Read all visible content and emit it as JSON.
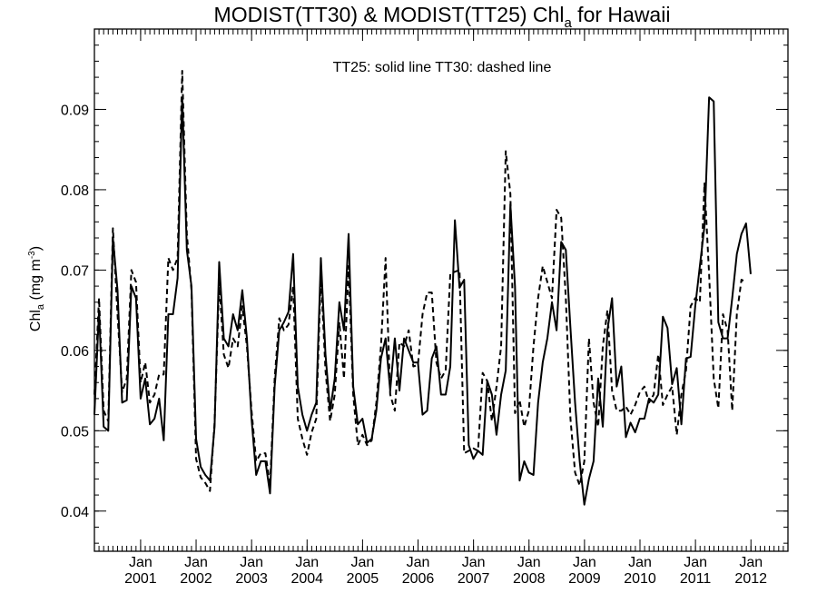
{
  "chart_data": {
    "type": "line",
    "title_main": "MODIST(TT30) & MODIST(TT25)  Chl",
    "title_sub": "a",
    "title_tail": " for Hawaii",
    "ylabel_main": "Chl",
    "ylabel_sub": "a",
    "ylabel_unit": " (mg m",
    "ylabel_sup": "-3",
    "ylabel_close": ")",
    "annotation": "TT25: solid line   TT30: dashed line",
    "xlim": [
      2000.167,
      2012.667
    ],
    "ylim": [
      0.035,
      0.1
    ],
    "y_ticks": [
      0.04,
      0.05,
      0.06,
      0.07,
      0.08,
      0.09
    ],
    "y_tick_labels": [
      "0.04",
      "0.05",
      "0.06",
      "0.07",
      "0.08",
      "0.09"
    ],
    "x_ticks": [
      2001,
      2002,
      2003,
      2004,
      2005,
      2006,
      2007,
      2008,
      2009,
      2010,
      2011,
      2012
    ],
    "x_tick_month": "Jan",
    "x_tick_years": [
      "2001",
      "2002",
      "2003",
      "2004",
      "2005",
      "2006",
      "2007",
      "2008",
      "2009",
      "2010",
      "2011",
      "2012"
    ],
    "grid": false,
    "series": [
      {
        "style": "solid",
        "x_start": 2000.167,
        "x_step": 0.0833,
        "values": [
          0.052,
          0.065,
          0.0505,
          0.05,
          0.074,
          0.0675,
          0.0535,
          0.0538,
          0.068,
          0.0665,
          0.054,
          0.0565,
          0.0508,
          0.0515,
          0.054,
          0.0488,
          0.0645,
          0.0645,
          0.069,
          0.0915,
          0.0725,
          0.068,
          0.049,
          0.0455,
          0.0445,
          0.0438,
          0.0505,
          0.071,
          0.0615,
          0.0605,
          0.0645,
          0.0625,
          0.0675,
          0.0615,
          0.0515,
          0.0445,
          0.0462,
          0.0462,
          0.0422,
          0.0555,
          0.0625,
          0.0635,
          0.0648,
          0.072,
          0.0555,
          0.052,
          0.05,
          0.052,
          0.0535,
          0.0715,
          0.0595,
          0.0525,
          0.0565,
          0.066,
          0.0625,
          0.0745,
          0.0555,
          0.0508,
          0.0515,
          0.0485,
          0.049,
          0.0525,
          0.059,
          0.0615,
          0.055,
          0.0615,
          0.055,
          0.0615,
          0.06,
          0.0585,
          0.0585,
          0.052,
          0.0525,
          0.059,
          0.0605,
          0.0545,
          0.0545,
          0.058,
          0.0762,
          0.0678,
          0.0688,
          0.0482,
          0.0465,
          0.0475,
          0.047,
          0.0562,
          0.0545,
          0.0495,
          0.0545,
          0.0575,
          0.0782,
          0.068,
          0.0438,
          0.0462,
          0.0448,
          0.0445,
          0.0535,
          0.0585,
          0.0615,
          0.066,
          0.0625,
          0.0735,
          0.0725,
          0.0628,
          0.0535,
          0.0462,
          0.0408,
          0.044,
          0.0462,
          0.0565,
          0.0505,
          0.0625,
          0.0665,
          0.0555,
          0.058,
          0.0492,
          0.051,
          0.0498,
          0.0515,
          0.0515,
          0.054,
          0.0535,
          0.0545,
          0.0642,
          0.0628,
          0.0558,
          0.0578,
          0.0508,
          0.059,
          0.0592,
          0.0655,
          0.0705,
          0.0755,
          0.0915,
          0.091,
          0.0635,
          0.0615,
          0.0615,
          0.0665,
          0.072,
          0.0745,
          0.0758,
          0.0695
        ]
      },
      {
        "style": "dashed",
        "x_start": 2000.167,
        "x_step": 0.0833,
        "values": [
          0.0545,
          0.0665,
          0.0525,
          0.0512,
          0.0752,
          0.0645,
          0.0548,
          0.0565,
          0.07,
          0.0685,
          0.056,
          0.0585,
          0.0535,
          0.0545,
          0.057,
          0.057,
          0.0715,
          0.07,
          0.0715,
          0.0948,
          0.0745,
          0.0675,
          0.0465,
          0.0442,
          0.0435,
          0.0425,
          0.051,
          0.0685,
          0.0595,
          0.0578,
          0.0615,
          0.0605,
          0.0655,
          0.0605,
          0.0525,
          0.0462,
          0.0472,
          0.0472,
          0.0432,
          0.0565,
          0.064,
          0.0625,
          0.0632,
          0.068,
          0.0515,
          0.049,
          0.047,
          0.0498,
          0.0515,
          0.0695,
          0.0575,
          0.0512,
          0.0545,
          0.0635,
          0.0565,
          0.0705,
          0.0545,
          0.0482,
          0.0495,
          0.0482,
          0.0488,
          0.0535,
          0.0605,
          0.0715,
          0.0545,
          0.0525,
          0.061,
          0.0605,
          0.0625,
          0.058,
          0.0582,
          0.0645,
          0.0672,
          0.0672,
          0.0585,
          0.0565,
          0.0575,
          0.0695,
          0.0698,
          0.07,
          0.0472,
          0.0475,
          0.0478,
          0.0475,
          0.0572,
          0.0562,
          0.0512,
          0.0555,
          0.0605,
          0.0848,
          0.0795,
          0.0522,
          0.0538,
          0.0505,
          0.0525,
          0.0605,
          0.0665,
          0.0705,
          0.0685,
          0.0665,
          0.0775,
          0.0765,
          0.0665,
          0.0515,
          0.0448,
          0.0432,
          0.0462,
          0.0615,
          0.0535,
          0.0505,
          0.0605,
          0.065,
          0.055,
          0.0525,
          0.0525,
          0.053,
          0.052,
          0.0532,
          0.0548,
          0.0555,
          0.0535,
          0.0545,
          0.0595,
          0.0532,
          0.0545,
          0.0555,
          0.0495,
          0.0545,
          0.0575,
          0.0655,
          0.0665,
          0.066,
          0.0808,
          0.0695,
          0.0565,
          0.0528,
          0.0645,
          0.0625,
          0.0525,
          0.0645,
          0.0688,
          0.0685
        ]
      }
    ]
  }
}
